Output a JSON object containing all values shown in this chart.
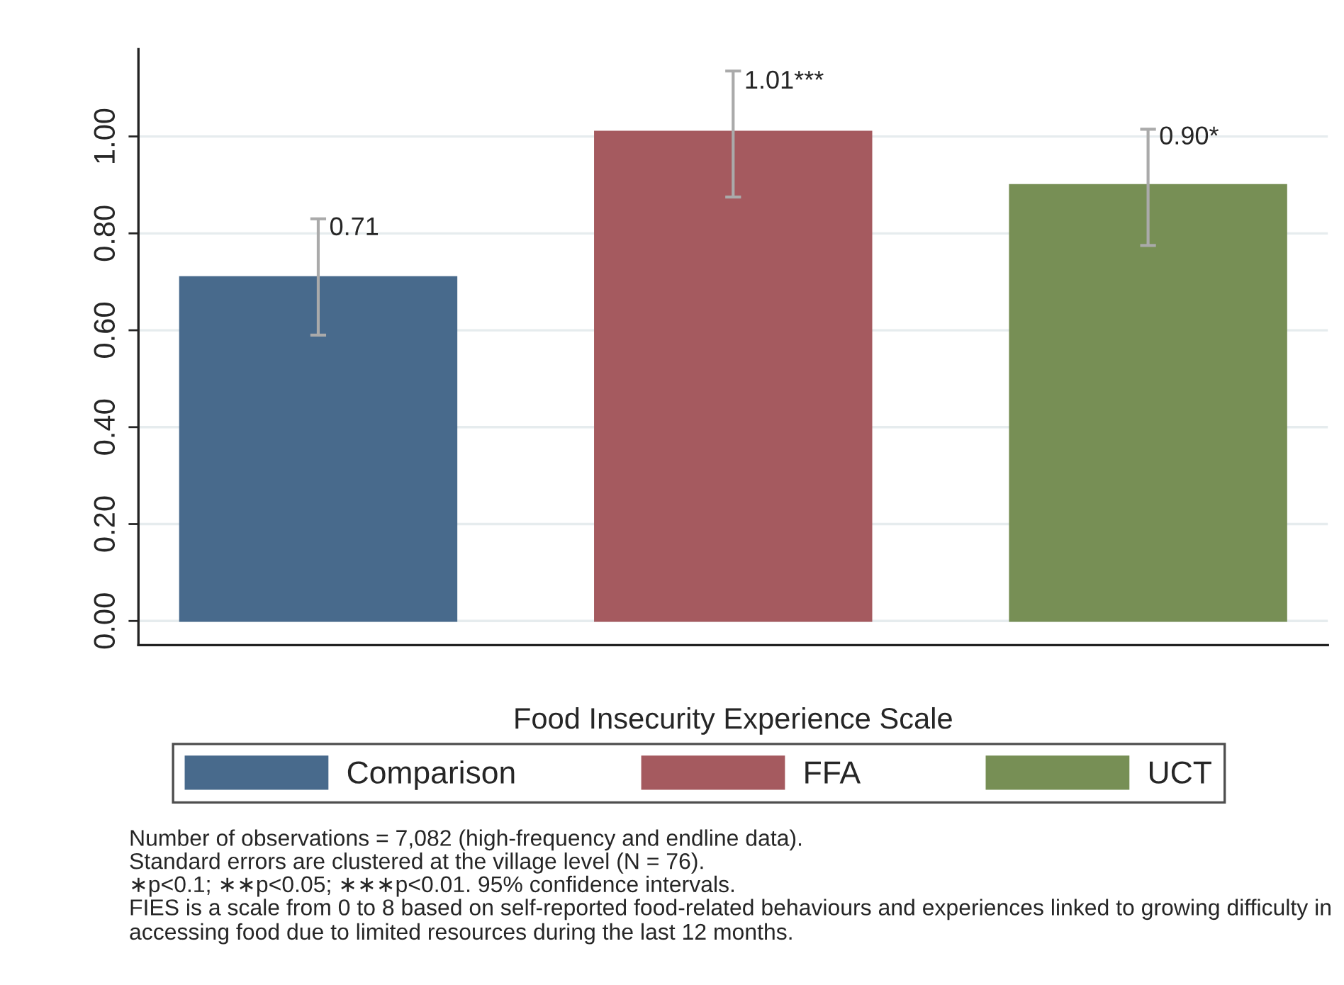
{
  "chart_data": {
    "type": "bar",
    "xlabel": "Food Insecurity Experience Scale",
    "categories": [
      null
    ],
    "series": [
      {
        "name": "Comparison",
        "color": "#486a8c",
        "values": [
          0.71
        ],
        "errors": [
          [
            0.59,
            0.83
          ]
        ],
        "value_labels": [
          "0.71"
        ]
      },
      {
        "name": "FFA",
        "color": "#a55a5f",
        "values": [
          1.01
        ],
        "errors": [
          [
            0.875,
            1.135
          ]
        ],
        "value_labels": [
          "1.01***"
        ]
      },
      {
        "name": "UCT",
        "color": "#778f55",
        "values": [
          0.9
        ],
        "errors": [
          [
            0.775,
            1.015
          ]
        ],
        "value_labels": [
          "0.90*"
        ]
      }
    ],
    "ylim": [
      -0.05,
      1.18
    ],
    "yticks": [
      {
        "value": 0,
        "label": "0.00"
      },
      {
        "value": 0.2,
        "label": "0.20"
      },
      {
        "value": 0.4,
        "label": "0.40"
      },
      {
        "value": 0.6,
        "label": "0.60"
      },
      {
        "value": 0.8,
        "label": "0.80"
      },
      {
        "value": 1.0,
        "label": "1.00"
      }
    ],
    "grid": "y",
    "legend": "bottom",
    "annotations": [
      "Number of observations = 7,082 (high-frequency and endline data).",
      "Standard errors are clustered at the village level (N = 76).",
      "∗p<0.1; ∗∗p<0.05; ∗∗∗p<0.01. 95% confidence intervals.",
      "FIES is a scale from 0 to 8 based on self-reported food-related behaviours and experiences linked to growing difficulty in accessing food due to limited resources during the last 12 months."
    ]
  }
}
